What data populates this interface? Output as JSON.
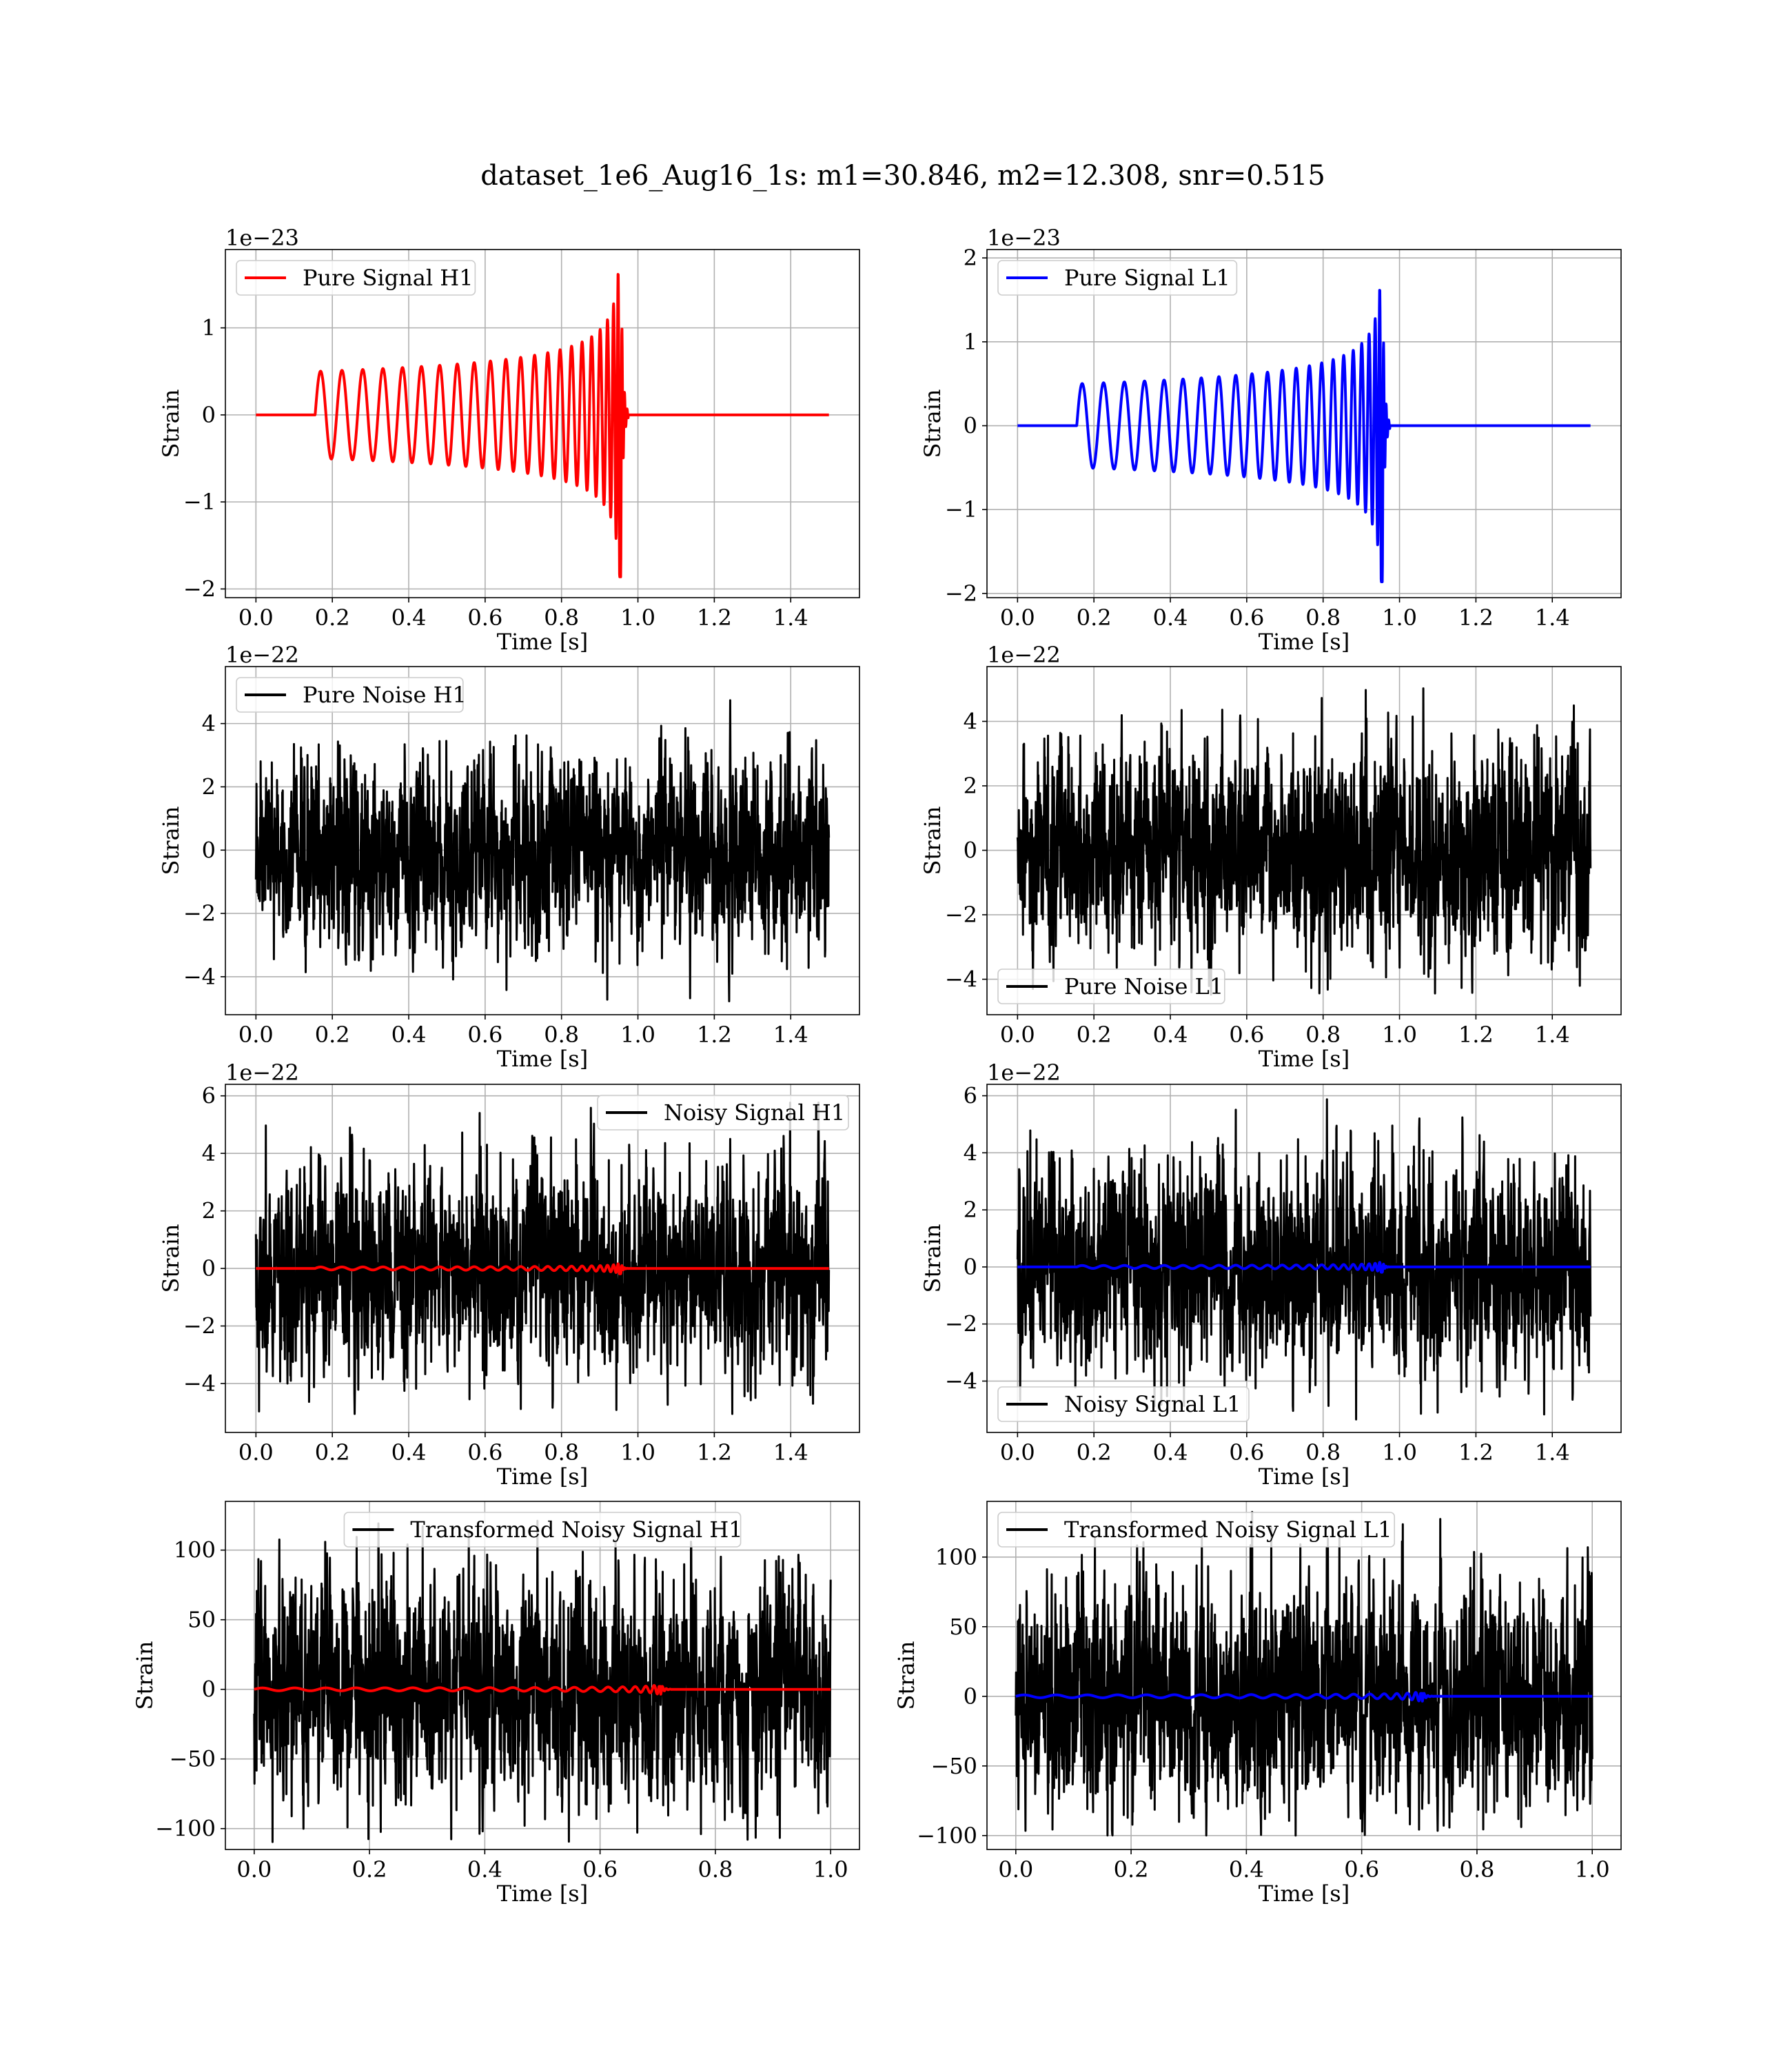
{
  "title": "dataset_1e6_Aug16_1s: m1=30.846, m2=12.308, snr=0.515",
  "chart_data": [
    {
      "id": "pure-signal-h1",
      "type": "line",
      "offset_text": "1e−23",
      "xlabel": "Time [s]",
      "ylabel": "Strain",
      "xlim": [
        -0.08,
        1.58
      ],
      "ylim": [
        -2.1,
        1.9
      ],
      "xticks": [
        0.0,
        0.2,
        0.4,
        0.6,
        0.8,
        1.0,
        1.2,
        1.4
      ],
      "xticklabels": [
        "0.0",
        "0.2",
        "0.4",
        "0.6",
        "0.8",
        "1.0",
        "1.2",
        "1.4"
      ],
      "yticks": [
        -2,
        -1,
        0,
        1
      ],
      "yticklabels": [
        "−2",
        "−1",
        "0",
        "1"
      ],
      "grid": true,
      "legend": {
        "position": "top-left",
        "entries": [
          {
            "label": "Pure Signal H1",
            "color": "#ff0000"
          }
        ]
      },
      "series": [
        {
          "name": "Pure Signal H1",
          "color": "#ff0000",
          "kind": "chirp",
          "x_range": [
            0.0,
            1.5
          ],
          "t_start": 0.155,
          "t_merge": 0.955,
          "amp_start": 0.5,
          "amp_peak": 1.9,
          "y_min": -1.9
        }
      ]
    },
    {
      "id": "pure-signal-l1",
      "type": "line",
      "offset_text": "1e−23",
      "xlabel": "Time [s]",
      "ylabel": "Strain",
      "xlim": [
        -0.08,
        1.58
      ],
      "ylim": [
        -2.05,
        2.1
      ],
      "xticks": [
        0.0,
        0.2,
        0.4,
        0.6,
        0.8,
        1.0,
        1.2,
        1.4
      ],
      "xticklabels": [
        "0.0",
        "0.2",
        "0.4",
        "0.6",
        "0.8",
        "1.0",
        "1.2",
        "1.4"
      ],
      "yticks": [
        -2,
        -1,
        0,
        1,
        2
      ],
      "yticklabels": [
        "−2",
        "−1",
        "0",
        "1",
        "2"
      ],
      "grid": true,
      "legend": {
        "position": "top-left",
        "entries": [
          {
            "label": "Pure Signal L1",
            "color": "#0000ff"
          }
        ]
      },
      "series": [
        {
          "name": "Pure Signal L1",
          "color": "#0000ff",
          "kind": "chirp",
          "x_range": [
            0.0,
            1.5
          ],
          "t_start": 0.155,
          "t_merge": 0.955,
          "amp_start": 0.5,
          "amp_peak": 1.9,
          "y_min": -1.9
        }
      ]
    },
    {
      "id": "pure-noise-h1",
      "type": "line",
      "offset_text": "1e−22",
      "xlabel": "Time [s]",
      "ylabel": "Strain",
      "xlim": [
        -0.08,
        1.58
      ],
      "ylim": [
        -5.2,
        5.8
      ],
      "xticks": [
        0.0,
        0.2,
        0.4,
        0.6,
        0.8,
        1.0,
        1.2,
        1.4
      ],
      "xticklabels": [
        "0.0",
        "0.2",
        "0.4",
        "0.6",
        "0.8",
        "1.0",
        "1.2",
        "1.4"
      ],
      "yticks": [
        -4,
        -2,
        0,
        2,
        4
      ],
      "yticklabels": [
        "−4",
        "−2",
        "0",
        "2",
        "4"
      ],
      "grid": true,
      "legend": {
        "position": "top-left",
        "entries": [
          {
            "label": "Pure Noise H1",
            "color": "#000000"
          }
        ]
      },
      "series": [
        {
          "name": "Pure Noise H1",
          "color": "#000000",
          "kind": "noise",
          "x_range": [
            0.0,
            1.5
          ],
          "y_range": [
            -4.8,
            4.9
          ]
        }
      ]
    },
    {
      "id": "pure-noise-l1",
      "type": "line",
      "offset_text": "1e−22",
      "xlabel": "Time [s]",
      "ylabel": "Strain",
      "xlim": [
        -0.08,
        1.58
      ],
      "ylim": [
        -5.1,
        5.7
      ],
      "xticks": [
        0.0,
        0.2,
        0.4,
        0.6,
        0.8,
        1.0,
        1.2,
        1.4
      ],
      "xticklabels": [
        "0.0",
        "0.2",
        "0.4",
        "0.6",
        "0.8",
        "1.0",
        "1.2",
        "1.4"
      ],
      "yticks": [
        -4,
        -2,
        0,
        2,
        4
      ],
      "yticklabels": [
        "−4",
        "−2",
        "0",
        "2",
        "4"
      ],
      "grid": true,
      "legend": {
        "position": "bottom-left",
        "entries": [
          {
            "label": "Pure Noise L1",
            "color": "#000000"
          }
        ]
      },
      "series": [
        {
          "name": "Pure Noise L1",
          "color": "#000000",
          "kind": "noise",
          "x_range": [
            0.0,
            1.5
          ],
          "y_range": [
            -4.6,
            5.2
          ]
        }
      ]
    },
    {
      "id": "noisy-signal-h1",
      "type": "line",
      "offset_text": "1e−22",
      "xlabel": "Time [s]",
      "ylabel": "Strain",
      "xlim": [
        -0.08,
        1.58
      ],
      "ylim": [
        -5.7,
        6.4
      ],
      "xticks": [
        0.0,
        0.2,
        0.4,
        0.6,
        0.8,
        1.0,
        1.2,
        1.4
      ],
      "xticklabels": [
        "0.0",
        "0.2",
        "0.4",
        "0.6",
        "0.8",
        "1.0",
        "1.2",
        "1.4"
      ],
      "yticks": [
        -4,
        -2,
        0,
        2,
        4,
        6
      ],
      "yticklabels": [
        "−4",
        "−2",
        "0",
        "2",
        "4",
        "6"
      ],
      "grid": true,
      "legend": {
        "position": "top-right",
        "entries": [
          {
            "label": "Noisy Signal H1",
            "color": "#000000"
          }
        ]
      },
      "series": [
        {
          "name": "Noisy Signal H1",
          "color": "#000000",
          "kind": "noise",
          "x_range": [
            0.0,
            1.5
          ],
          "y_range": [
            -5.1,
            5.9
          ]
        },
        {
          "color": "#ff0000",
          "kind": "chirp",
          "x_range": [
            0.0,
            1.5
          ],
          "t_start": 0.155,
          "t_merge": 0.955,
          "amp_start": 0.05,
          "amp_peak": 0.19,
          "y_min": -0.19
        }
      ]
    },
    {
      "id": "noisy-signal-l1",
      "type": "line",
      "offset_text": "1e−22",
      "xlabel": "Time [s]",
      "ylabel": "Strain",
      "xlim": [
        -0.08,
        1.58
      ],
      "ylim": [
        -5.8,
        6.4
      ],
      "xticks": [
        0.0,
        0.2,
        0.4,
        0.6,
        0.8,
        1.0,
        1.2,
        1.4
      ],
      "xticklabels": [
        "0.0",
        "0.2",
        "0.4",
        "0.6",
        "0.8",
        "1.0",
        "1.2",
        "1.4"
      ],
      "yticks": [
        -4,
        -2,
        0,
        2,
        4,
        6
      ],
      "yticklabels": [
        "−4",
        "−2",
        "0",
        "2",
        "4",
        "6"
      ],
      "grid": true,
      "legend": {
        "position": "bottom-left",
        "entries": [
          {
            "label": "Noisy Signal L1",
            "color": "#000000"
          }
        ]
      },
      "series": [
        {
          "name": "Noisy Signal L1",
          "color": "#000000",
          "kind": "noise",
          "x_range": [
            0.0,
            1.5
          ],
          "y_range": [
            -5.4,
            5.9
          ]
        },
        {
          "color": "#0000ff",
          "kind": "chirp",
          "x_range": [
            0.0,
            1.5
          ],
          "t_start": 0.155,
          "t_merge": 0.955,
          "amp_start": 0.05,
          "amp_peak": 0.19,
          "y_min": -0.19
        }
      ]
    },
    {
      "id": "transformed-noisy-signal-h1",
      "type": "line",
      "offset_text": "",
      "xlabel": "Time [s]",
      "ylabel": "Strain",
      "xlim": [
        -0.05,
        1.05
      ],
      "ylim": [
        -115,
        135
      ],
      "xticks": [
        0.0,
        0.2,
        0.4,
        0.6,
        0.8,
        1.0
      ],
      "xticklabels": [
        "0.0",
        "0.2",
        "0.4",
        "0.6",
        "0.8",
        "1.0"
      ],
      "yticks": [
        -100,
        -50,
        0,
        50,
        100
      ],
      "yticklabels": [
        "−100",
        "−50",
        "0",
        "50",
        "100"
      ],
      "grid": true,
      "legend": {
        "position": "top-center",
        "entries": [
          {
            "label": "Transformed Noisy Signal H1",
            "color": "#000000"
          }
        ]
      },
      "series": [
        {
          "name": "Transformed Noisy Signal H1",
          "color": "#000000",
          "kind": "noise",
          "x_range": [
            0.0,
            1.0
          ],
          "y_range": [
            -112,
            128
          ]
        },
        {
          "color": "#ff0000",
          "kind": "chirp",
          "x_range": [
            0.0,
            1.0
          ],
          "t_start": 0.0,
          "t_merge": 0.705,
          "amp_start": 1.0,
          "amp_peak": 4.0,
          "y_min": -4.0
        }
      ]
    },
    {
      "id": "transformed-noisy-signal-l1",
      "type": "line",
      "offset_text": "",
      "xlabel": "Time [s]",
      "ylabel": "Strain",
      "xlim": [
        -0.05,
        1.05
      ],
      "ylim": [
        -110,
        140
      ],
      "xticks": [
        0.0,
        0.2,
        0.4,
        0.6,
        0.8,
        1.0
      ],
      "xticklabels": [
        "0.0",
        "0.2",
        "0.4",
        "0.6",
        "0.8",
        "1.0"
      ],
      "yticks": [
        -100,
        -50,
        0,
        50,
        100
      ],
      "yticklabels": [
        "−100",
        "−50",
        "0",
        "50",
        "100"
      ],
      "grid": true,
      "legend": {
        "position": "top-left",
        "entries": [
          {
            "label": "Transformed Noisy Signal L1",
            "color": "#000000"
          }
        ]
      },
      "series": [
        {
          "name": "Transformed Noisy Signal L1",
          "color": "#000000",
          "kind": "noise",
          "x_range": [
            0.0,
            1.0
          ],
          "y_range": [
            -100,
            133
          ]
        },
        {
          "color": "#0000ff",
          "kind": "chirp",
          "x_range": [
            0.0,
            1.0
          ],
          "t_start": 0.0,
          "t_merge": 0.705,
          "amp_start": 1.0,
          "amp_peak": 4.0,
          "y_min": -4.0
        }
      ]
    }
  ]
}
